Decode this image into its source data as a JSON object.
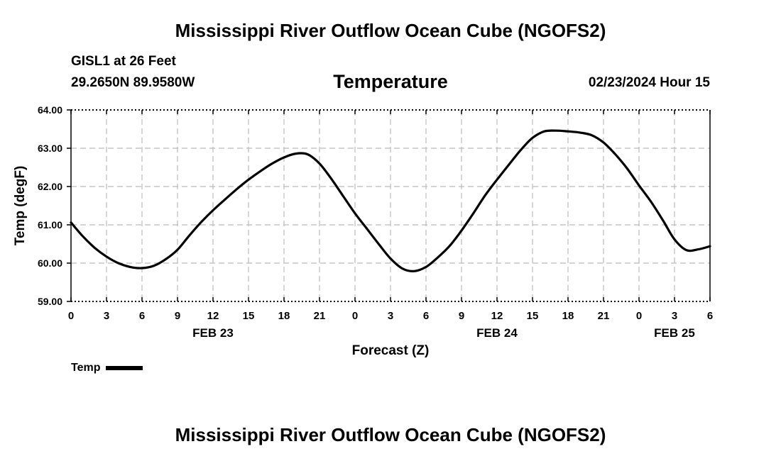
{
  "header": {
    "main_title": "Mississippi River Outflow Ocean Cube (NGOFS2)",
    "station": "GISL1 at 26 Feet",
    "coords": "29.2650N  89.9580W",
    "panel_title": "Temperature",
    "datetime": "02/23/2024 Hour 15"
  },
  "footer": {
    "title": "Mississippi River Outflow Ocean Cube (NGOFS2)"
  },
  "legend": {
    "label": "Temp"
  },
  "chart_data": {
    "type": "line",
    "title": "Temperature",
    "xlabel": "Forecast (Z)",
    "ylabel": "Temp (degF)",
    "xlim": [
      0,
      54
    ],
    "ylim": [
      59,
      64
    ],
    "grid": true,
    "y_ticks": [
      59,
      60,
      61,
      62,
      63,
      64
    ],
    "y_tick_labels": [
      "59.00",
      "60.00",
      "61.00",
      "62.00",
      "63.00",
      "64.00"
    ],
    "x_ticks": [
      0,
      3,
      6,
      9,
      12,
      15,
      18,
      21,
      24,
      27,
      30,
      33,
      36,
      39,
      42,
      45,
      48,
      51,
      54
    ],
    "x_tick_labels": [
      "0",
      "3",
      "6",
      "9",
      "12",
      "15",
      "18",
      "21",
      "0",
      "3",
      "6",
      "9",
      "12",
      "15",
      "18",
      "21",
      "0",
      "3",
      "6"
    ],
    "date_labels": [
      {
        "x": 12,
        "label": "FEB 23"
      },
      {
        "x": 36,
        "label": "FEB 24"
      },
      {
        "x": 51,
        "label": "FEB 25"
      }
    ],
    "series": [
      {
        "name": "Temp",
        "x": [
          0,
          1,
          2,
          3,
          4,
          5,
          6,
          7,
          8,
          9,
          10,
          11,
          12,
          13,
          14,
          15,
          16,
          17,
          18,
          19,
          20,
          21,
          22,
          23,
          24,
          25,
          26,
          27,
          28,
          29,
          30,
          31,
          32,
          33,
          34,
          35,
          36,
          37,
          38,
          39,
          40,
          41,
          42,
          43,
          44,
          45,
          46,
          47,
          48,
          49,
          50,
          51,
          52,
          53,
          54
        ],
        "values": [
          61.06,
          60.7,
          60.4,
          60.17,
          60.0,
          59.9,
          59.87,
          59.93,
          60.1,
          60.35,
          60.72,
          61.07,
          61.38,
          61.66,
          61.93,
          62.18,
          62.4,
          62.6,
          62.76,
          62.86,
          62.84,
          62.6,
          62.2,
          61.75,
          61.3,
          60.9,
          60.5,
          60.12,
          59.86,
          59.79,
          59.9,
          60.15,
          60.45,
          60.85,
          61.3,
          61.77,
          62.18,
          62.57,
          62.95,
          63.27,
          63.44,
          63.46,
          63.44,
          63.41,
          63.34,
          63.15,
          62.84,
          62.47,
          62.03,
          61.61,
          61.13,
          60.62,
          60.34,
          60.36,
          60.44
        ]
      }
    ]
  }
}
